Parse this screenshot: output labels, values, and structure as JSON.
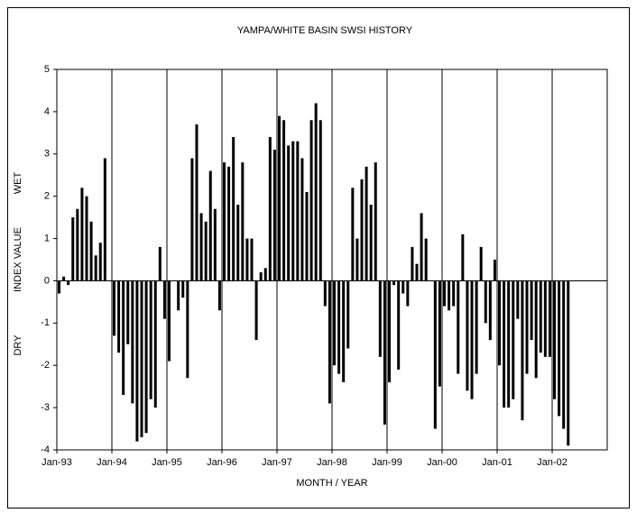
{
  "chart_data": {
    "type": "bar",
    "title": "YAMPA/WHITE BASIN SWSI HISTORY",
    "xlabel": "MONTH / YEAR",
    "ylabel": {
      "low": "DRY",
      "middle": "INDEX VALUE",
      "high": "WET"
    },
    "color": "#000000",
    "categories": [
      "Jan-93",
      null,
      null,
      null,
      null,
      null,
      null,
      null,
      null,
      null,
      null,
      null,
      "Jan-94",
      null,
      null,
      null,
      null,
      null,
      null,
      null,
      null,
      null,
      null,
      null,
      "Jan-95",
      null,
      null,
      null,
      null,
      null,
      null,
      null,
      null,
      null,
      null,
      null,
      "Jan-96",
      null,
      null,
      null,
      null,
      null,
      null,
      null,
      null,
      null,
      null,
      null,
      "Jan-97",
      null,
      null,
      null,
      null,
      null,
      null,
      null,
      null,
      null,
      null,
      null,
      "Jan-98",
      null,
      null,
      null,
      null,
      null,
      null,
      null,
      null,
      null,
      null,
      null,
      "Jan-99",
      null,
      null,
      null,
      null,
      null,
      null,
      null,
      null,
      null,
      null,
      null,
      "Jan-00",
      null,
      null,
      null,
      null,
      null,
      null,
      null,
      null,
      null,
      null,
      null,
      "Jan-01",
      null,
      null,
      null,
      null,
      null,
      null,
      null,
      null,
      null,
      null,
      null,
      "Jan-02",
      null,
      null,
      null,
      null,
      null,
      null,
      null,
      null,
      null,
      null,
      null
    ],
    "values": [
      -0.3,
      0.1,
      -0.1,
      1.5,
      1.7,
      2.2,
      2.0,
      1.4,
      0.6,
      0.9,
      2.9,
      0,
      -1.3,
      -1.7,
      -2.7,
      -1.5,
      -2.9,
      -3.8,
      -3.7,
      -3.6,
      -2.8,
      -3.0,
      0.8,
      -0.9,
      -1.9,
      0,
      -0.7,
      -0.4,
      -2.3,
      2.9,
      3.7,
      1.6,
      1.4,
      2.6,
      1.7,
      -0.7,
      2.8,
      2.7,
      3.4,
      1.8,
      2.8,
      1.0,
      1.0,
      -1.4,
      0.2,
      0.3,
      3.4,
      3.1,
      3.9,
      3.8,
      3.2,
      3.3,
      3.3,
      2.9,
      2.1,
      3.8,
      4.2,
      3.8,
      -0.6,
      -2.9,
      -2.0,
      -2.2,
      -2.4,
      -1.6,
      2.2,
      1.0,
      2.4,
      2.7,
      1.8,
      2.8,
      -1.8,
      -3.4,
      -2.4,
      -0.1,
      -2.1,
      -0.3,
      -0.6,
      0.8,
      0.4,
      1.6,
      1.0,
      0,
      -3.5,
      -2.5,
      -0.6,
      -0.7,
      -0.6,
      -2.2,
      1.1,
      -2.6,
      -2.8,
      -2.2,
      0.8,
      -1.0,
      -1.4,
      0.5,
      -2.0,
      -3.0,
      -3.0,
      -2.8,
      -0.9,
      -3.3,
      -2.2,
      -1.4,
      -2.3,
      -1.7,
      -1.8,
      -1.8,
      -2.8,
      -3.2,
      -3.5,
      -3.9,
      null,
      null,
      null,
      null,
      null,
      null,
      null,
      null
    ],
    "ylim": [
      -4,
      5
    ],
    "yticks": [
      -4,
      -3,
      -2,
      -1,
      0,
      1,
      2,
      3,
      4,
      5
    ],
    "grid": true
  }
}
